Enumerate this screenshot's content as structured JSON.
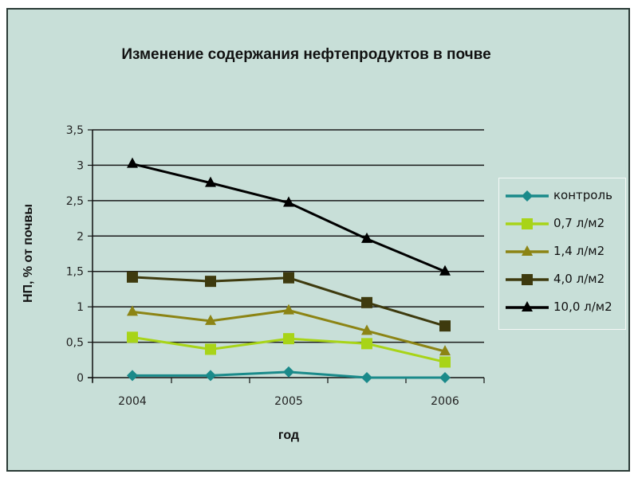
{
  "chart_data": {
    "type": "line",
    "title": "Изменение содержания нефтепродуктов в почве",
    "xlabel": "год",
    "ylabel": "НП, %  от почвы",
    "x_tick_labels": [
      "2004",
      "2005",
      "2006"
    ],
    "x": [
      2004,
      2004.5,
      2005,
      2005.5,
      2006
    ],
    "y_ticks": [
      "0",
      "0,5",
      "1",
      "1,5",
      "2",
      "2,5",
      "3",
      "3,5"
    ],
    "ylim": [
      0,
      3.5
    ],
    "grid": "horizontal",
    "legend_position": "right",
    "series": [
      {
        "name": "контроль",
        "color": "#1a8a8a",
        "marker": "diamond",
        "values": [
          0.03,
          0.03,
          0.08,
          0.0,
          0.0
        ]
      },
      {
        "name": "0,7 л/м2",
        "color": "#a8d418",
        "marker": "square",
        "values": [
          0.57,
          0.4,
          0.55,
          0.48,
          0.22
        ]
      },
      {
        "name": "1,4 л/м2",
        "color": "#8c8414",
        "marker": "triangle",
        "values": [
          0.93,
          0.8,
          0.95,
          0.66,
          0.37
        ]
      },
      {
        "name": "4,0 л/м2",
        "color": "#3e3a0e",
        "marker": "square",
        "values": [
          1.42,
          1.36,
          1.41,
          1.06,
          0.73
        ]
      },
      {
        "name": "10,0 л/м2",
        "color": "#000000",
        "marker": "triangle",
        "values": [
          3.02,
          2.75,
          2.47,
          1.96,
          1.5
        ]
      }
    ]
  },
  "colors": {
    "background": "#c8dfd8",
    "frame": "#2a3a36",
    "grid": "#1a1a1a"
  }
}
